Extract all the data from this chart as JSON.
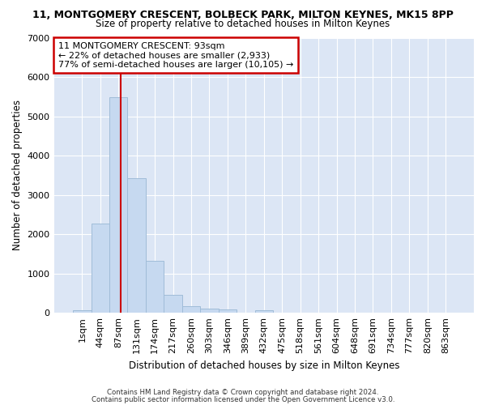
{
  "title": "11, MONTGOMERY CRESCENT, BOLBECK PARK, MILTON KEYNES, MK15 8PP",
  "subtitle": "Size of property relative to detached houses in Milton Keynes",
  "xlabel": "Distribution of detached houses by size in Milton Keynes",
  "ylabel": "Number of detached properties",
  "bar_color": "#c6d9f0",
  "bar_edge_color": "#a0bcd8",
  "bg_color": "#dce6f5",
  "grid_color": "#ffffff",
  "fig_color": "#ffffff",
  "categories": [
    "1sqm",
    "44sqm",
    "87sqm",
    "131sqm",
    "174sqm",
    "217sqm",
    "260sqm",
    "303sqm",
    "346sqm",
    "389sqm",
    "432sqm",
    "475sqm",
    "518sqm",
    "561sqm",
    "604sqm",
    "648sqm",
    "691sqm",
    "734sqm",
    "777sqm",
    "820sqm",
    "863sqm"
  ],
  "values": [
    75,
    2270,
    5480,
    3420,
    1330,
    460,
    175,
    100,
    80,
    0,
    75,
    0,
    0,
    0,
    0,
    0,
    0,
    0,
    0,
    0,
    0
  ],
  "vline_color": "#cc0000",
  "vline_position": 2.14,
  "annotation_line1": "11 MONTGOMERY CRESCENT: 93sqm",
  "annotation_line2": "← 22% of detached houses are smaller (2,933)",
  "annotation_line3": "77% of semi-detached houses are larger (10,105) →",
  "ylim": [
    0,
    7000
  ],
  "yticks": [
    0,
    1000,
    2000,
    3000,
    4000,
    5000,
    6000,
    7000
  ],
  "footer1": "Contains HM Land Registry data © Crown copyright and database right 2024.",
  "footer2": "Contains public sector information licensed under the Open Government Licence v3.0."
}
